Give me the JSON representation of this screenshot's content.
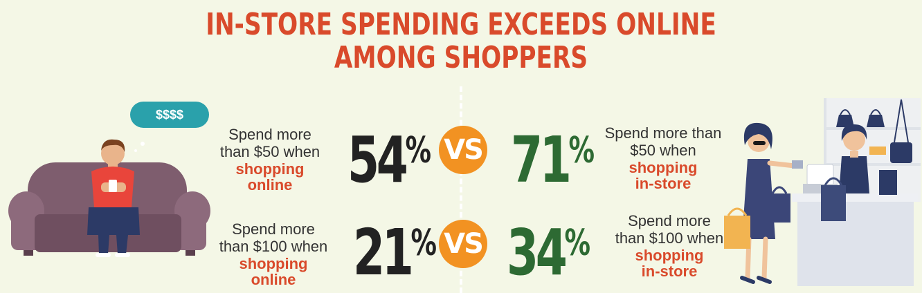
{
  "title": {
    "line1": "IN-STORE SPENDING EXCEEDS ONLINE",
    "line2": "AMONG SHOPPERS"
  },
  "bubble_text": "$$$$",
  "vs_label": "VS",
  "percent_sign": "%",
  "rows": [
    {
      "online": {
        "label_line1": "Spend more",
        "label_line2": "than $50 when",
        "label_hl1": "shopping",
        "label_hl2": "online",
        "value": "54"
      },
      "instore": {
        "label_line1": "Spend more than",
        "label_line2": "$50 when",
        "label_hl1": "shopping",
        "label_hl2": "in-store",
        "value": "71"
      }
    },
    {
      "online": {
        "label_line1": "Spend more",
        "label_line2": "than $100 when",
        "label_hl1": "shopping",
        "label_hl2": "online",
        "value": "21"
      },
      "instore": {
        "label_line1": "Spend more",
        "label_line2": "than $100 when",
        "label_hl1": "shopping",
        "label_hl2": "in-store",
        "value": "34"
      }
    }
  ],
  "colors": {
    "background": "#f4f7e6",
    "title": "#d94a2b",
    "online_value": "#222222",
    "instore_value": "#2d6a33",
    "vs_circle": "#f29222",
    "bubble": "#2aa1ab"
  }
}
